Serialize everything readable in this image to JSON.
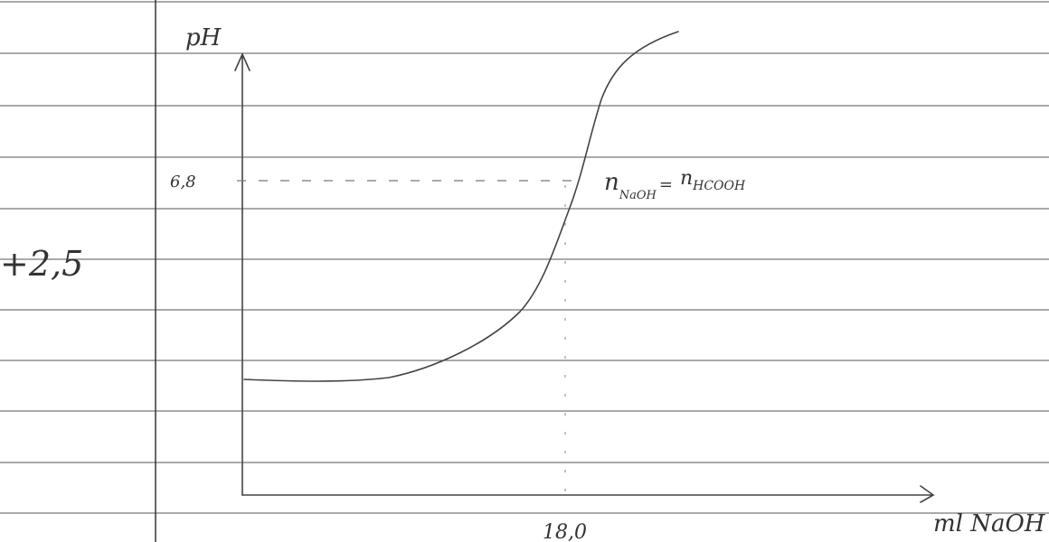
{
  "sketch": {
    "y_axis_label": "pH",
    "x_axis_label": "ml NaOH",
    "equivalence_ph": "6,8",
    "equivalence_volume": "18,0",
    "equivalence_condition": {
      "left": "n",
      "left_sub": "NaOH",
      "equals": "=",
      "right": "n",
      "right_sub": "HCOOH"
    },
    "margin_note": "+2,5"
  }
}
